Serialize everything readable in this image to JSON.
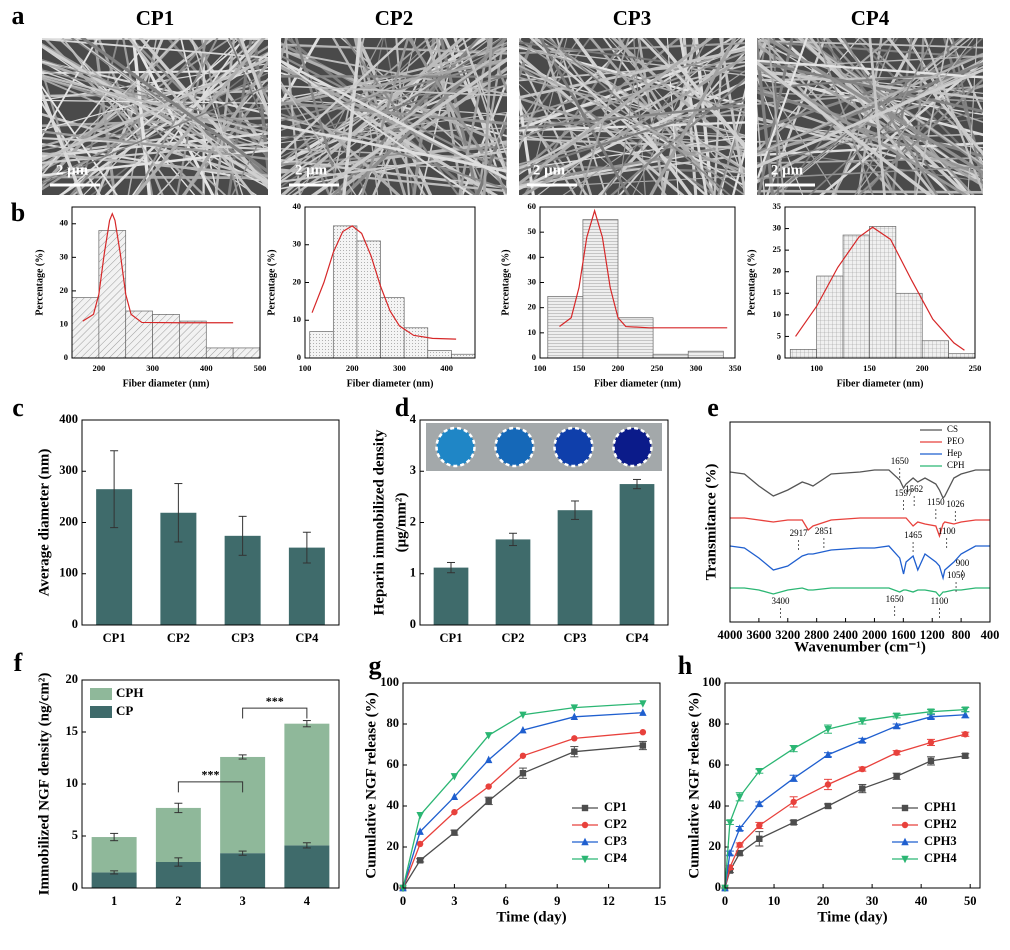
{
  "images": {
    "label": "a",
    "items": [
      {
        "title": "CP1",
        "scale_bar": "2 μm"
      },
      {
        "title": "CP2",
        "scale_bar": "2 μm"
      },
      {
        "title": "CP3",
        "scale_bar": "2 μm"
      },
      {
        "title": "CP4",
        "scale_bar": "2 μm"
      }
    ]
  },
  "chart_data": [
    {
      "label": "b",
      "type": "histogram",
      "bins": [
        150,
        200,
        250,
        300,
        350,
        400,
        450,
        500
      ],
      "counts": [
        18,
        38,
        14,
        13,
        11,
        3,
        3
      ],
      "xlim": [
        150,
        500
      ],
      "xticks": [
        200,
        300,
        400,
        500
      ],
      "ylim": [
        0,
        45
      ],
      "yticks": [
        0,
        10,
        20,
        30,
        40
      ],
      "xlabel": "Fiber diameter (nm)",
      "ylabel": "Percentage (%)",
      "fit": {
        "color": "#d62728",
        "x": [
          170,
          190,
          200,
          210,
          220,
          225,
          230,
          240,
          250,
          260,
          280,
          350,
          450
        ],
        "values": [
          11,
          13,
          19,
          31,
          41,
          43,
          41,
          31,
          19,
          13,
          10.6,
          10.5,
          10.5
        ]
      }
    },
    {
      "type": "histogram",
      "bins": [
        110,
        160,
        210,
        260,
        310,
        360,
        410,
        460
      ],
      "counts": [
        7,
        35,
        31,
        16,
        8,
        2,
        1
      ],
      "xlim": [
        100,
        460
      ],
      "xticks": [
        100,
        200,
        300,
        400
      ],
      "ylim": [
        0,
        40
      ],
      "yticks": [
        0,
        10,
        20,
        30,
        40
      ],
      "xlabel": "Fiber diameter (nm)",
      "ylabel": "Percentage (%)",
      "fit": {
        "color": "#d62728",
        "x": [
          115,
          140,
          160,
          180,
          200,
          220,
          240,
          260,
          280,
          300,
          330,
          370,
          420
        ],
        "values": [
          12,
          20,
          28,
          33.5,
          35,
          33,
          27,
          19,
          12.5,
          8.5,
          6,
          5.2,
          5
        ]
      }
    },
    {
      "type": "histogram",
      "bins": [
        110,
        155,
        200,
        245,
        290,
        335
      ],
      "counts": [
        24.5,
        55,
        16,
        1.5,
        2.7
      ],
      "xlim": [
        100,
        350
      ],
      "xticks": [
        100,
        150,
        200,
        250,
        300,
        350
      ],
      "ylim": [
        0,
        60
      ],
      "yticks": [
        0,
        10,
        20,
        30,
        40,
        50,
        60
      ],
      "xlabel": "Fiber diameter (nm)",
      "ylabel": "Percentage (%)",
      "fit": {
        "color": "#d62728",
        "x": [
          125,
          140,
          150,
          160,
          170,
          180,
          190,
          200,
          210,
          240,
          340
        ],
        "values": [
          12.5,
          16,
          28,
          48,
          58.5,
          48,
          28,
          16,
          12.5,
          12,
          12
        ]
      }
    },
    {
      "type": "histogram",
      "bins": [
        75,
        100,
        125,
        150,
        175,
        200,
        225,
        250
      ],
      "counts": [
        2,
        19,
        28.5,
        30.5,
        15,
        4,
        1
      ],
      "xlim": [
        70,
        250
      ],
      "xticks": [
        100,
        150,
        200,
        250
      ],
      "ylim": [
        0,
        35
      ],
      "yticks": [
        0,
        5,
        10,
        15,
        20,
        25,
        30,
        35
      ],
      "xlabel": "Fiber diameter (nm)",
      "ylabel": "Percentage (%)",
      "fit": {
        "color": "#d62728",
        "x": [
          80,
          100,
          120,
          140,
          153,
          170,
          190,
          210,
          230,
          240
        ],
        "values": [
          5,
          12,
          21,
          28,
          30.3,
          27.5,
          18,
          9,
          3.5,
          1.8
        ]
      }
    },
    {
      "label": "c",
      "type": "bar",
      "categories": [
        "CP1",
        "CP2",
        "CP3",
        "CP4"
      ],
      "values": [
        265,
        219,
        174,
        151
      ],
      "errors": [
        75,
        57,
        38,
        30
      ],
      "color": "#3f6b6b",
      "ylim": [
        0,
        400
      ],
      "yticks": [
        0,
        100,
        200,
        300,
        400
      ],
      "ylabel": "Average diameter (nm)"
    },
    {
      "label": "d",
      "type": "bar",
      "categories": [
        "CP1",
        "CP2",
        "CP3",
        "CP4"
      ],
      "values": [
        1.12,
        1.67,
        2.24,
        2.75
      ],
      "errors": [
        0.1,
        0.12,
        0.18,
        0.09
      ],
      "color": "#3f6b6b",
      "ylim": [
        0,
        4
      ],
      "yticks": [
        0,
        1,
        2,
        3,
        4
      ],
      "ylabel": [
        "Heparin immobilized density",
        "(μg/mm²)"
      ]
    },
    {
      "label": "e",
      "type": "spectrum",
      "x": [
        4000,
        3800,
        3600,
        3400,
        3200,
        3000,
        2917,
        2851,
        2600,
        2200,
        2000,
        1800,
        1650,
        1597,
        1562,
        1465,
        1400,
        1300,
        1150,
        1100,
        1050,
        1026,
        900,
        800,
        600,
        400
      ],
      "xlim": [
        4000,
        400
      ],
      "xticks": [
        4000,
        3600,
        3200,
        2800,
        2400,
        2000,
        1600,
        1200,
        800,
        400
      ],
      "ylim": [
        0,
        100
      ],
      "xlabel": "Wavenumber (cm⁻¹)",
      "ylabel": "Transmitance (%)",
      "series": [
        {
          "name": "CS",
          "color": "#555555",
          "values": [
            75,
            74,
            68,
            63,
            66,
            70,
            69,
            68,
            74,
            75,
            76,
            76,
            71,
            67,
            69,
            72,
            70,
            72,
            69,
            66,
            62,
            63,
            72,
            74,
            76,
            76
          ]
        },
        {
          "name": "PEO",
          "color": "#e8413c",
          "values": [
            52,
            52,
            51,
            50,
            51,
            51,
            46,
            48,
            51,
            52,
            52,
            52,
            52,
            52,
            52,
            48,
            50,
            49,
            48,
            43,
            49,
            50,
            49,
            50,
            51,
            51
          ]
        },
        {
          "name": "Hep",
          "color": "#1f5fcf",
          "values": [
            38,
            37,
            32,
            26,
            28,
            33,
            34,
            34,
            36,
            37,
            37,
            38,
            32,
            24,
            30,
            33,
            26,
            34,
            30,
            28,
            22,
            26,
            30,
            34,
            38,
            38
          ]
        },
        {
          "name": "CPH",
          "color": "#2bb673",
          "values": [
            17,
            17,
            16,
            14,
            16,
            17,
            16,
            16,
            17,
            17,
            17,
            17,
            15,
            16,
            16,
            15,
            16,
            16,
            15,
            13,
            15,
            15,
            16,
            16,
            17,
            17
          ]
        }
      ],
      "annotations": [
        {
          "text": "1650",
          "x": 1650,
          "y": 80
        },
        {
          "text": "1597",
          "x": 1597,
          "y": 64
        },
        {
          "text": "1562",
          "x": 1450,
          "y": 66
        },
        {
          "text": "1150",
          "x": 1150,
          "y": 59.5
        },
        {
          "text": "1026",
          "x": 880,
          "y": 58.5
        },
        {
          "text": "2917",
          "x": 3050,
          "y": 44
        },
        {
          "text": "2851",
          "x": 2700,
          "y": 45
        },
        {
          "text": "1465",
          "x": 1465,
          "y": 43
        },
        {
          "text": "1100",
          "x": 1000,
          "y": 45
        },
        {
          "text": "900",
          "x": 780,
          "y": 29
        },
        {
          "text": "1050",
          "x": 870,
          "y": 23
        },
        {
          "text": "3400",
          "x": 3300,
          "y": 10
        },
        {
          "text": "1650",
          "x": 1720,
          "y": 11
        },
        {
          "text": "1100",
          "x": 1100,
          "y": 10
        }
      ]
    },
    {
      "label": "f",
      "type": "stacked_bar",
      "categories": [
        "1",
        "2",
        "3",
        "4"
      ],
      "ylim": [
        0,
        20
      ],
      "yticks": [
        0,
        5,
        10,
        15,
        20
      ],
      "ylabel": "Immobilized NGF density (ng/cm²)",
      "series": [
        {
          "name": "CP",
          "color": "#3f6b6b",
          "values": [
            1.5,
            2.5,
            3.35,
            4.1
          ],
          "errors": [
            0.15,
            0.4,
            0.2,
            0.25
          ]
        },
        {
          "name": "CPH",
          "color": "#8fb89a",
          "values": [
            3.4,
            5.2,
            9.25,
            11.7
          ],
          "errors": [
            0.35,
            0.45,
            0.2,
            0.3
          ]
        }
      ],
      "significance": [
        {
          "text": "***",
          "from": 1,
          "to": 2,
          "y": 10.2
        },
        {
          "text": "***",
          "from": 2,
          "to": 3,
          "y": 17.3
        }
      ]
    },
    {
      "label": "g",
      "type": "line",
      "x": [
        0,
        1,
        3,
        5,
        7,
        10,
        14
      ],
      "xlim": [
        0,
        15
      ],
      "xticks": [
        0,
        3,
        6,
        9,
        12,
        15
      ],
      "ylim": [
        0,
        100
      ],
      "yticks": [
        0,
        20,
        40,
        60,
        80,
        100
      ],
      "xlabel": "Time (day)",
      "ylabel": "Cumulative NGF release (%)",
      "series": [
        {
          "name": "CP1",
          "color": "#4d4d4d",
          "marker": "square",
          "values": [
            0,
            13.5,
            27,
            42.5,
            56,
            66.5,
            69.5
          ],
          "errors": [
            0,
            0.8,
            1.2,
            1.8,
            2.5,
            2.5,
            2
          ]
        },
        {
          "name": "CP2",
          "color": "#e8413c",
          "marker": "circle",
          "values": [
            0,
            21.5,
            37,
            49.5,
            64.5,
            73,
            76
          ]
        },
        {
          "name": "CP3",
          "color": "#1f5fcf",
          "marker": "triangle",
          "values": [
            0,
            27.5,
            44.5,
            62.5,
            77,
            83.5,
            85.5
          ]
        },
        {
          "name": "CP4",
          "color": "#2bb673",
          "marker": "triangle-down",
          "values": [
            0,
            35.5,
            54.5,
            74.5,
            84.5,
            88,
            90
          ]
        }
      ]
    },
    {
      "label": "h",
      "type": "line",
      "x": [
        0,
        1,
        3,
        7,
        14,
        21,
        28,
        35,
        42,
        49
      ],
      "xlim": [
        0,
        52
      ],
      "xticks": [
        0,
        10,
        20,
        30,
        40,
        50
      ],
      "ylim": [
        0,
        100
      ],
      "yticks": [
        0,
        20,
        40,
        60,
        80,
        100
      ],
      "xlabel": "Time (day)",
      "ylabel": "Cumulative NGF release (%)",
      "series": [
        {
          "name": "CPH1",
          "color": "#4d4d4d",
          "marker": "square",
          "values": [
            0,
            8.5,
            17,
            24,
            32,
            40,
            48.5,
            54.5,
            62,
            64.5
          ],
          "errors": [
            0,
            1,
            1,
            3.5,
            1,
            1,
            2,
            1.5,
            2,
            1
          ]
        },
        {
          "name": "CPH2",
          "color": "#e8413c",
          "marker": "circle",
          "values": [
            0,
            10,
            21,
            30.5,
            42,
            50.5,
            58,
            66,
            71,
            75
          ],
          "errors": [
            0,
            1,
            1,
            1.5,
            2.5,
            2.5,
            1,
            1,
            1.5,
            1
          ]
        },
        {
          "name": "CPH3",
          "color": "#1f5fcf",
          "marker": "triangle",
          "values": [
            0,
            17,
            29,
            41,
            53.5,
            65,
            72,
            79,
            83.5,
            84.5
          ],
          "errors": [
            0,
            1,
            1,
            1,
            1.5,
            1,
            1,
            1,
            1,
            1.5
          ]
        },
        {
          "name": "CPH4",
          "color": "#2bb673",
          "marker": "triangle-down",
          "values": [
            0,
            32,
            44.5,
            57,
            68,
            77.5,
            81.5,
            84,
            86,
            87
          ],
          "errors": [
            0,
            1,
            2,
            1,
            1.5,
            2,
            1.5,
            1,
            1,
            1
          ]
        }
      ]
    }
  ]
}
